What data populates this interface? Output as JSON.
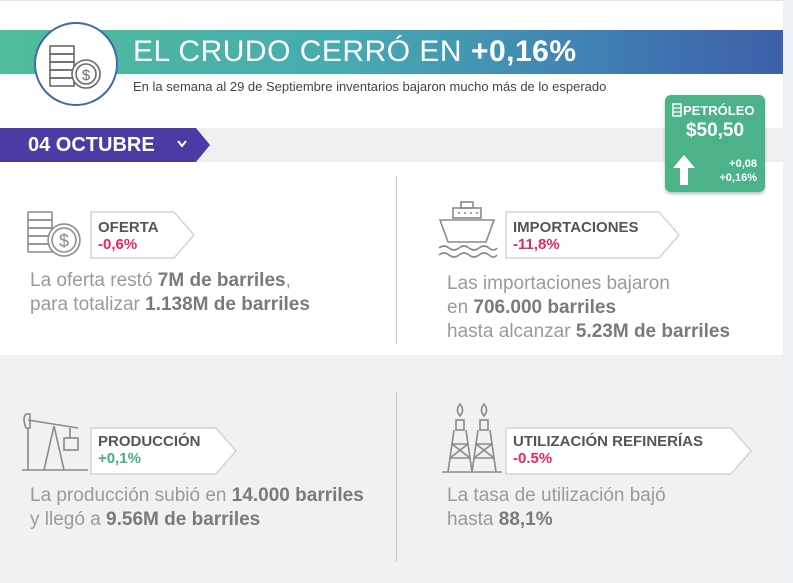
{
  "header": {
    "title_prefix": "EL CRUDO CERRÓ EN ",
    "title_value": "+0,16%",
    "subtitle": "En la semana al 29 de Septiembre inventarios bajaron mucho más de lo esperado"
  },
  "date_ribbon": {
    "label": "04 OCTUBRE"
  },
  "petroleo_badge": {
    "title": "PETRÓLEO",
    "price": "$50,50",
    "change_abs": "+0,08",
    "change_pct": "+0,16%"
  },
  "stats": {
    "oferta": {
      "label": "OFERTA",
      "value": "-0,6%",
      "line1_pre": "La oferta restó ",
      "line1_bold": "7M de barriles",
      "line1_post": ",",
      "line2_pre": "para totalizar ",
      "line2_bold": "1.138M de barriles"
    },
    "importaciones": {
      "label": "IMPORTACIONES",
      "value": "-11,8%",
      "line1": "Las importaciones bajaron",
      "line2_pre": "en ",
      "line2_bold": "706.000 barriles",
      "line3_pre": "hasta alcanzar ",
      "line3_bold": "5.23M de barriles"
    },
    "produccion": {
      "label": "PRODUCCIÓN",
      "value": "+0,1%",
      "line1_pre": "La producción subió en ",
      "line1_bold": "14.000 barriles",
      "line2_pre": "y llegó a ",
      "line2_bold": "9.56M de barriles"
    },
    "utilizacion": {
      "label": "UTILIZACIÓN REFINERÍAS",
      "value": "-0.5%",
      "line1": "La tasa de utilización bajó",
      "line2_pre": "hasta ",
      "line2_bold": "88,1%"
    }
  },
  "colors": {
    "brand_green": "#4cb388",
    "brand_blue": "#3d5ea8",
    "ribbon_purple": "#4b3ba5",
    "negative": "#e8245a",
    "positive": "#41b27d"
  }
}
